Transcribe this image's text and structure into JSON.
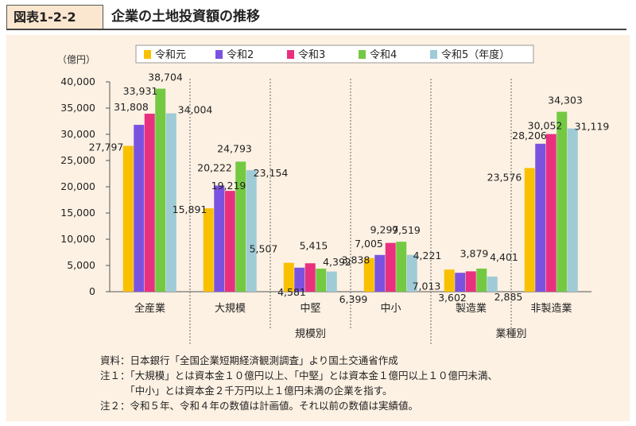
{
  "header": {
    "figure_label": "図表1-2-2",
    "title": "企業の土地投資額の推移"
  },
  "notes": [
    "資料：日本銀行「全国企業短期経済観測調査」より国土交通省作成",
    "注１：「大規模」とは資本金１０億円以上、「中堅」とは資本金１億円以上１０億円未満、",
    "　　　「中小」とは資本金２千万円以上１億円未満の企業を指す。",
    "注２：令和５年、令和４年の数値は計画値。それ以前の数値は実績値。"
  ],
  "chart_data": {
    "type": "bar",
    "unit_label": "（億円）",
    "categories": [
      "全産業",
      "大規模",
      "中堅",
      "中小",
      "製造業",
      "非製造業"
    ],
    "group_labels": [
      {
        "label": "規模別",
        "categories": [
          "大規模",
          "中堅",
          "中小"
        ]
      },
      {
        "label": "業種別",
        "categories": [
          "製造業",
          "非製造業"
        ]
      }
    ],
    "series": [
      {
        "name": "令和元",
        "color": "#f9c000",
        "values": [
          27797,
          15891,
          5507,
          6399,
          4221,
          23576
        ]
      },
      {
        "name": "令和2",
        "color": "#7b52e0",
        "values": [
          31808,
          20222,
          4581,
          7005,
          3602,
          28206
        ]
      },
      {
        "name": "令和3",
        "color": "#e8307f",
        "values": [
          33931,
          19219,
          5415,
          9297,
          3879,
          30052
        ]
      },
      {
        "name": "令和4",
        "color": "#74c943",
        "values": [
          38704,
          24793,
          4392,
          9519,
          4401,
          34303
        ]
      },
      {
        "name": "令和5（年度）",
        "color": "#9ecbd6",
        "values": [
          34004,
          23154,
          3838,
          7013,
          2885,
          31119
        ]
      }
    ],
    "data_labels": [
      "27,797",
      "31,808",
      "33,931",
      "38,704",
      "34,004",
      "15,891",
      "20,222",
      "19,219",
      "24,793",
      "23,154",
      "5,507",
      "4,581",
      "5,415",
      "4,392",
      "3,838",
      "6,399",
      "7,005",
      "9,297",
      "9,519",
      "7,013",
      "4,221",
      "3,602",
      "3,879",
      "4,401",
      "2,885",
      "23,576",
      "28,206",
      "30,052",
      "34,303",
      "31,119"
    ],
    "y_tick_labels": [
      "0",
      "5,000",
      "10,000",
      "15,000",
      "20,000",
      "25,000",
      "30,000",
      "35,000",
      "40,000"
    ],
    "ylim": [
      0,
      40000
    ],
    "grid": false,
    "legend_position": "top"
  }
}
